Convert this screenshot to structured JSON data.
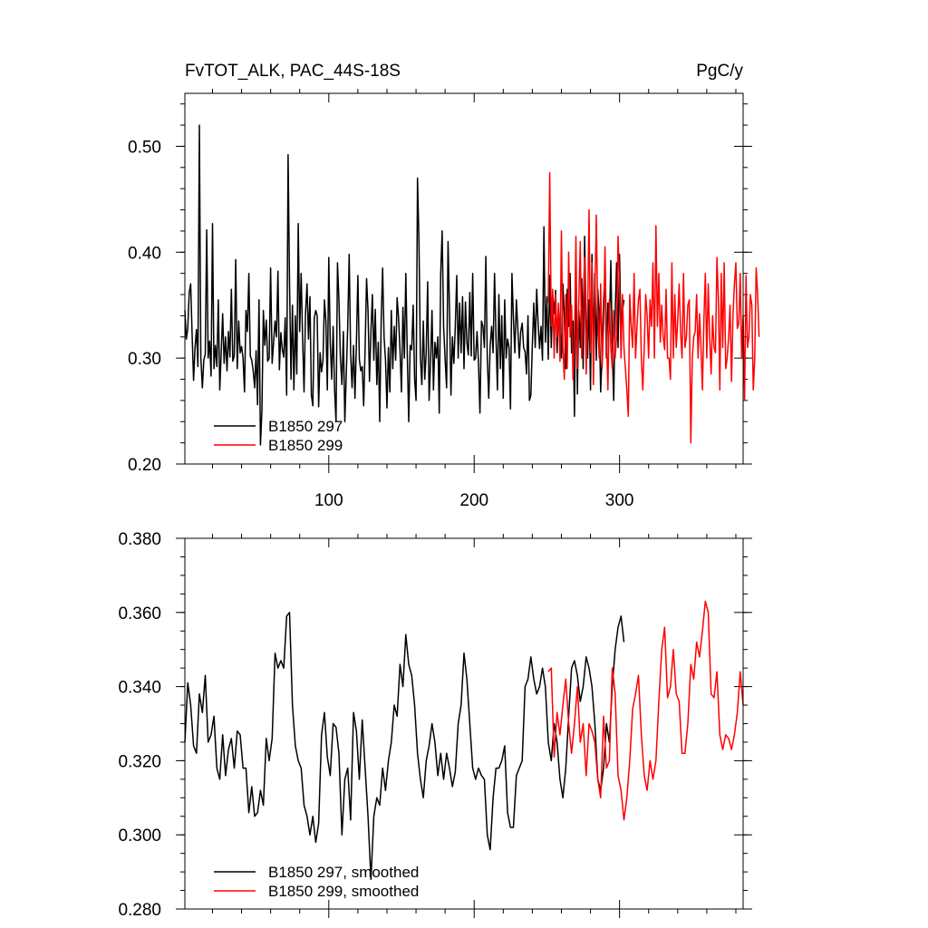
{
  "chart_data": [
    {
      "type": "line",
      "title_left": "FvTOT_ALK, PAC_44S-18S",
      "title_right": "PgC/y",
      "xlim": [
        1,
        385
      ],
      "ylim": [
        0.2,
        0.55
      ],
      "xticks": [
        100,
        200,
        300
      ],
      "xtick_labels": [
        "100",
        "200",
        "300"
      ],
      "yticks": [
        0.2,
        0.3,
        0.4,
        0.5
      ],
      "ytick_labels": [
        "0.20",
        "0.30",
        "0.40",
        "0.50"
      ],
      "legend_position": "bottom-left",
      "series": [
        {
          "name": "B1850 297",
          "color": "#000000",
          "x_start": 1,
          "values": [
            0.345,
            0.318,
            0.328,
            0.362,
            0.37,
            0.322,
            0.279,
            0.31,
            0.327,
            0.292,
            0.52,
            0.301,
            0.272,
            0.298,
            0.304,
            0.421,
            0.3,
            0.316,
            0.283,
            0.427,
            0.29,
            0.312,
            0.292,
            0.355,
            0.27,
            0.305,
            0.342,
            0.295,
            0.32,
            0.288,
            0.325,
            0.301,
            0.365,
            0.297,
            0.302,
            0.393,
            0.29,
            0.335,
            0.305,
            0.311,
            0.3,
            0.268,
            0.345,
            0.325,
            0.38,
            0.302,
            0.298,
            0.288,
            0.272,
            0.307,
            0.256,
            0.355,
            0.218,
            0.25,
            0.345,
            0.312,
            0.336,
            0.297,
            0.3,
            0.385,
            0.295,
            0.315,
            0.335,
            0.32,
            0.382,
            0.289,
            0.324,
            0.308,
            0.301,
            0.338,
            0.265,
            0.492,
            0.37,
            0.28,
            0.35,
            0.27,
            0.34,
            0.285,
            0.427,
            0.325,
            0.38,
            0.32,
            0.268,
            0.342,
            0.37,
            0.318,
            0.358,
            0.265,
            0.255,
            0.338,
            0.345,
            0.34,
            0.254,
            0.305,
            0.287,
            0.298,
            0.355,
            0.335,
            0.27,
            0.395,
            0.315,
            0.28,
            0.33,
            0.27,
            0.24,
            0.39,
            0.355,
            0.3,
            0.275,
            0.325,
            0.24,
            0.285,
            0.33,
            0.398,
            0.305,
            0.272,
            0.312,
            0.262,
            0.315,
            0.378,
            0.299,
            0.288,
            0.292,
            0.255,
            0.31,
            0.375,
            0.345,
            0.278,
            0.325,
            0.36,
            0.298,
            0.346,
            0.275,
            0.315,
            0.24,
            0.335,
            0.385,
            0.32,
            0.298,
            0.253,
            0.31,
            0.268,
            0.345,
            0.29,
            0.33,
            0.298,
            0.357,
            0.338,
            0.307,
            0.268,
            0.348,
            0.3,
            0.38,
            0.305,
            0.24,
            0.312,
            0.308,
            0.35,
            0.28,
            0.26,
            0.47,
            0.41,
            0.3,
            0.275,
            0.335,
            0.28,
            0.305,
            0.372,
            0.26,
            0.296,
            0.345,
            0.27,
            0.315,
            0.3,
            0.32,
            0.248,
            0.38,
            0.42,
            0.33,
            0.3,
            0.272,
            0.41,
            0.345,
            0.265,
            0.32,
            0.295,
            0.33,
            0.378,
            0.3,
            0.352,
            0.305,
            0.358,
            0.29,
            0.353,
            0.315,
            0.303,
            0.362,
            0.302,
            0.38,
            0.298,
            0.3,
            0.325,
            0.295,
            0.248,
            0.335,
            0.33,
            0.31,
            0.396,
            0.3,
            0.262,
            0.312,
            0.33,
            0.305,
            0.38,
            0.32,
            0.27,
            0.36,
            0.29,
            0.34,
            0.262,
            0.355,
            0.3,
            0.318,
            0.31,
            0.252,
            0.38,
            0.338,
            0.305,
            0.355,
            0.328,
            0.3,
            0.325,
            0.333,
            0.31,
            0.306,
            0.285,
            0.34,
            0.26,
            0.265,
            0.312,
            0.352,
            0.31,
            0.365,
            0.332,
            0.309,
            0.33,
            0.298,
            0.424,
            0.315,
            0.358,
            0.299,
            0.378,
            0.31,
            0.36,
            0.342,
            0.364,
            0.305,
            0.345,
            0.33,
            0.3,
            0.37,
            0.34,
            0.29,
            0.365,
            0.33,
            0.38,
            0.305,
            0.335,
            0.245,
            0.39,
            0.266,
            0.345,
            0.31,
            0.375,
            0.29,
            0.415,
            0.33,
            0.3,
            0.355,
            0.27,
            0.398,
            0.306,
            0.38,
            0.298,
            0.365,
            0.34,
            0.268,
            0.305,
            0.355,
            0.38,
            0.3,
            0.352,
            0.325,
            0.392,
            0.31,
            0.26,
            0.34,
            0.39,
            0.31,
            0.398,
            0.325,
            0.345,
            0.355
          ]
        },
        {
          "name": "B1850 299",
          "color": "#ff0000",
          "x_start": 251,
          "values": [
            0.352,
            0.475,
            0.33,
            0.365,
            0.3,
            0.36,
            0.32,
            0.352,
            0.297,
            0.42,
            0.31,
            0.28,
            0.36,
            0.29,
            0.4,
            0.32,
            0.35,
            0.28,
            0.315,
            0.415,
            0.29,
            0.355,
            0.41,
            0.3,
            0.35,
            0.395,
            0.285,
            0.34,
            0.44,
            0.305,
            0.39,
            0.275,
            0.355,
            0.435,
            0.34,
            0.3,
            0.37,
            0.29,
            0.33,
            0.405,
            0.32,
            0.27,
            0.355,
            0.31,
            0.29,
            0.345,
            0.3,
            0.32,
            0.415,
            0.37,
            0.3,
            0.36,
            0.31,
            0.29,
            0.27,
            0.245,
            0.36,
            0.33,
            0.31,
            0.38,
            0.3,
            0.33,
            0.355,
            0.365,
            0.3,
            0.27,
            0.31,
            0.36,
            0.34,
            0.3,
            0.355,
            0.33,
            0.39,
            0.3,
            0.425,
            0.33,
            0.38,
            0.315,
            0.35,
            0.32,
            0.308,
            0.365,
            0.3,
            0.3,
            0.28,
            0.39,
            0.3,
            0.36,
            0.31,
            0.335,
            0.37,
            0.325,
            0.3,
            0.38,
            0.31,
            0.32,
            0.35,
            0.355,
            0.22,
            0.3,
            0.32,
            0.325,
            0.36,
            0.3,
            0.342,
            0.31,
            0.27,
            0.335,
            0.38,
            0.3,
            0.37,
            0.32,
            0.285,
            0.34,
            0.31,
            0.305,
            0.395,
            0.355,
            0.27,
            0.38,
            0.31,
            0.39,
            0.29,
            0.3,
            0.32,
            0.35,
            0.278,
            0.34,
            0.37,
            0.39,
            0.328,
            0.332,
            0.38,
            0.3,
            0.34,
            0.26,
            0.378,
            0.31,
            0.32,
            0.36,
            0.35,
            0.27,
            0.3,
            0.385,
            0.36,
            0.32
          ]
        }
      ]
    },
    {
      "type": "line",
      "xlim": [
        1,
        385
      ],
      "ylim": [
        0.28,
        0.38
      ],
      "xticks": [
        100,
        200,
        300
      ],
      "yticks": [
        0.28,
        0.3,
        0.32,
        0.34,
        0.36,
        0.38
      ],
      "ytick_labels": [
        "0.280",
        "0.300",
        "0.320",
        "0.340",
        "0.360",
        "0.380"
      ],
      "legend_position": "bottom-left",
      "series": [
        {
          "name": "B1850 297, smoothed",
          "color": "#000000",
          "x": [
            1,
            3,
            5,
            7,
            9,
            11,
            13,
            15,
            17,
            19,
            21,
            23,
            25,
            27,
            29,
            31,
            33,
            35,
            37,
            39,
            41,
            43,
            45,
            47,
            49,
            51,
            53,
            55,
            57,
            59,
            61,
            63,
            65,
            67,
            69,
            71,
            73,
            75,
            77,
            79,
            81,
            83,
            85,
            87,
            89,
            91,
            93,
            95,
            97,
            99,
            101,
            103,
            105,
            107,
            109,
            111,
            113,
            115,
            117,
            119,
            121,
            123,
            125,
            127,
            129,
            131,
            133,
            135,
            137,
            139,
            141,
            143,
            145,
            147,
            149,
            151,
            153,
            155,
            157,
            159,
            161,
            163,
            165,
            167,
            169,
            171,
            173,
            175,
            177,
            179,
            181,
            183,
            185,
            187,
            189,
            191,
            193,
            195,
            197,
            199,
            201,
            203,
            205,
            207,
            209,
            211,
            213,
            215,
            217,
            219,
            221,
            223,
            225,
            227,
            229,
            231,
            233,
            235,
            237,
            239,
            241,
            243,
            245,
            247,
            249,
            251,
            253,
            255,
            257,
            259,
            261,
            263,
            265,
            267,
            269,
            271,
            273,
            275,
            277,
            279,
            281,
            283,
            285,
            287,
            289,
            291,
            293,
            295,
            297,
            299,
            301,
            303
          ],
          "values": [
            0.325,
            0.341,
            0.335,
            0.324,
            0.322,
            0.338,
            0.333,
            0.343,
            0.325,
            0.327,
            0.332,
            0.318,
            0.315,
            0.327,
            0.316,
            0.323,
            0.326,
            0.318,
            0.328,
            0.327,
            0.318,
            0.318,
            0.306,
            0.313,
            0.305,
            0.306,
            0.312,
            0.308,
            0.326,
            0.32,
            0.326,
            0.349,
            0.345,
            0.347,
            0.345,
            0.359,
            0.36,
            0.335,
            0.324,
            0.32,
            0.318,
            0.308,
            0.305,
            0.3,
            0.305,
            0.298,
            0.303,
            0.327,
            0.333,
            0.321,
            0.316,
            0.33,
            0.329,
            0.322,
            0.3,
            0.315,
            0.318,
            0.304,
            0.333,
            0.328,
            0.315,
            0.331,
            0.318,
            0.305,
            0.288,
            0.305,
            0.31,
            0.308,
            0.318,
            0.312,
            0.32,
            0.325,
            0.335,
            0.332,
            0.346,
            0.34,
            0.354,
            0.346,
            0.343,
            0.335,
            0.322,
            0.315,
            0.31,
            0.32,
            0.324,
            0.33,
            0.325,
            0.316,
            0.322,
            0.315,
            0.322,
            0.318,
            0.313,
            0.317,
            0.33,
            0.335,
            0.349,
            0.342,
            0.33,
            0.318,
            0.315,
            0.318,
            0.316,
            0.315,
            0.3,
            0.296,
            0.31,
            0.318,
            0.318,
            0.32,
            0.324,
            0.306,
            0.302,
            0.302,
            0.316,
            0.318,
            0.32,
            0.34,
            0.342,
            0.348,
            0.342,
            0.338,
            0.34,
            0.345,
            0.34,
            0.325,
            0.32,
            0.33,
            0.325,
            0.315,
            0.31,
            0.318,
            0.332,
            0.345,
            0.347,
            0.343,
            0.336,
            0.34,
            0.348,
            0.345,
            0.34,
            0.33,
            0.315,
            0.312,
            0.318,
            0.33,
            0.325,
            0.34,
            0.35,
            0.356,
            0.359,
            0.352
          ]
        },
        {
          "name": "B1850 299, smoothed",
          "color": "#ff0000",
          "x": [
            251,
            253,
            255,
            257,
            259,
            261,
            263,
            265,
            267,
            269,
            271,
            273,
            275,
            277,
            279,
            281,
            283,
            285,
            287,
            289,
            291,
            293,
            295,
            297,
            299,
            301,
            303,
            305,
            307,
            309,
            311,
            313,
            315,
            317,
            319,
            321,
            323,
            325,
            327,
            329,
            331,
            333,
            335,
            337,
            339,
            341,
            343,
            345,
            347,
            349,
            351,
            353,
            355,
            357,
            359,
            361,
            363,
            365,
            367,
            369,
            371,
            373,
            375,
            377,
            379,
            381,
            383,
            385
          ],
          "values": [
            0.344,
            0.345,
            0.321,
            0.333,
            0.327,
            0.335,
            0.342,
            0.33,
            0.322,
            0.33,
            0.34,
            0.325,
            0.33,
            0.316,
            0.33,
            0.328,
            0.325,
            0.315,
            0.31,
            0.332,
            0.318,
            0.32,
            0.345,
            0.338,
            0.316,
            0.312,
            0.304,
            0.31,
            0.32,
            0.334,
            0.338,
            0.343,
            0.327,
            0.316,
            0.312,
            0.32,
            0.315,
            0.32,
            0.336,
            0.35,
            0.356,
            0.337,
            0.34,
            0.35,
            0.338,
            0.336,
            0.322,
            0.322,
            0.33,
            0.346,
            0.342,
            0.352,
            0.348,
            0.355,
            0.363,
            0.36,
            0.338,
            0.337,
            0.344,
            0.327,
            0.323,
            0.327,
            0.326,
            0.323,
            0.327,
            0.333,
            0.344,
            0.335
          ]
        }
      ]
    }
  ]
}
